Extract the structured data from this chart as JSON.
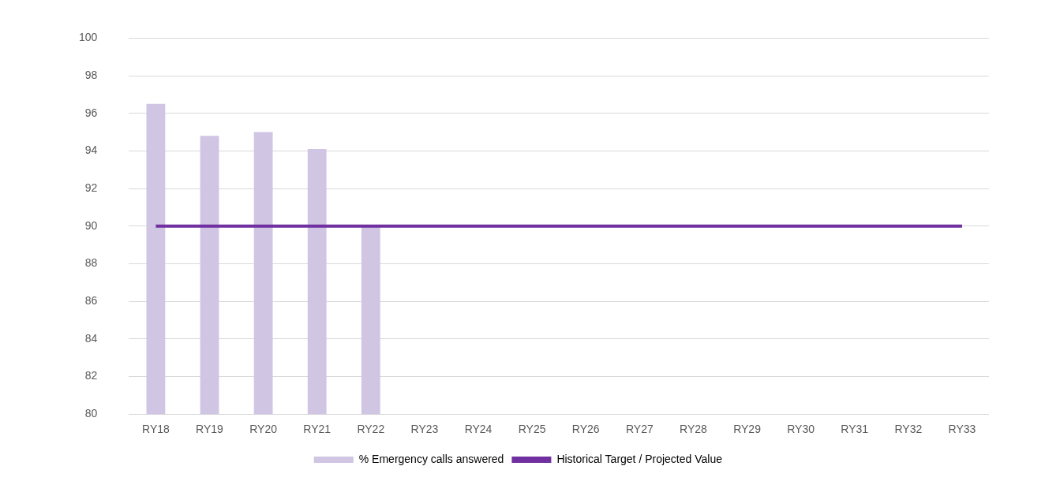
{
  "chart_data": {
    "type": "bar",
    "categories": [
      "RY18",
      "RY19",
      "RY20",
      "RY21",
      "RY22",
      "RY23",
      "RY24",
      "RY25",
      "RY26",
      "RY27",
      "RY28",
      "RY29",
      "RY30",
      "RY31",
      "RY32",
      "RY33"
    ],
    "series": [
      {
        "name": "% Emergency calls answered",
        "color": "#d0c6e4",
        "values": [
          96.5,
          94.8,
          95.0,
          94.1,
          90.0,
          null,
          null,
          null,
          null,
          null,
          null,
          null,
          null,
          null,
          null,
          null
        ]
      },
      {
        "name": "Historical Target / Projected Value",
        "type": "line",
        "color": "#7030a0",
        "values": [
          90,
          90,
          90,
          90,
          90,
          90,
          90,
          90,
          90,
          90,
          90,
          90,
          90,
          90,
          90,
          90
        ]
      }
    ],
    "ylim": [
      80,
      100
    ],
    "yticks": [
      80,
      82,
      84,
      86,
      88,
      90,
      92,
      94,
      96,
      98,
      100
    ],
    "grid": "y",
    "legend": "bottom",
    "marker": "none"
  }
}
